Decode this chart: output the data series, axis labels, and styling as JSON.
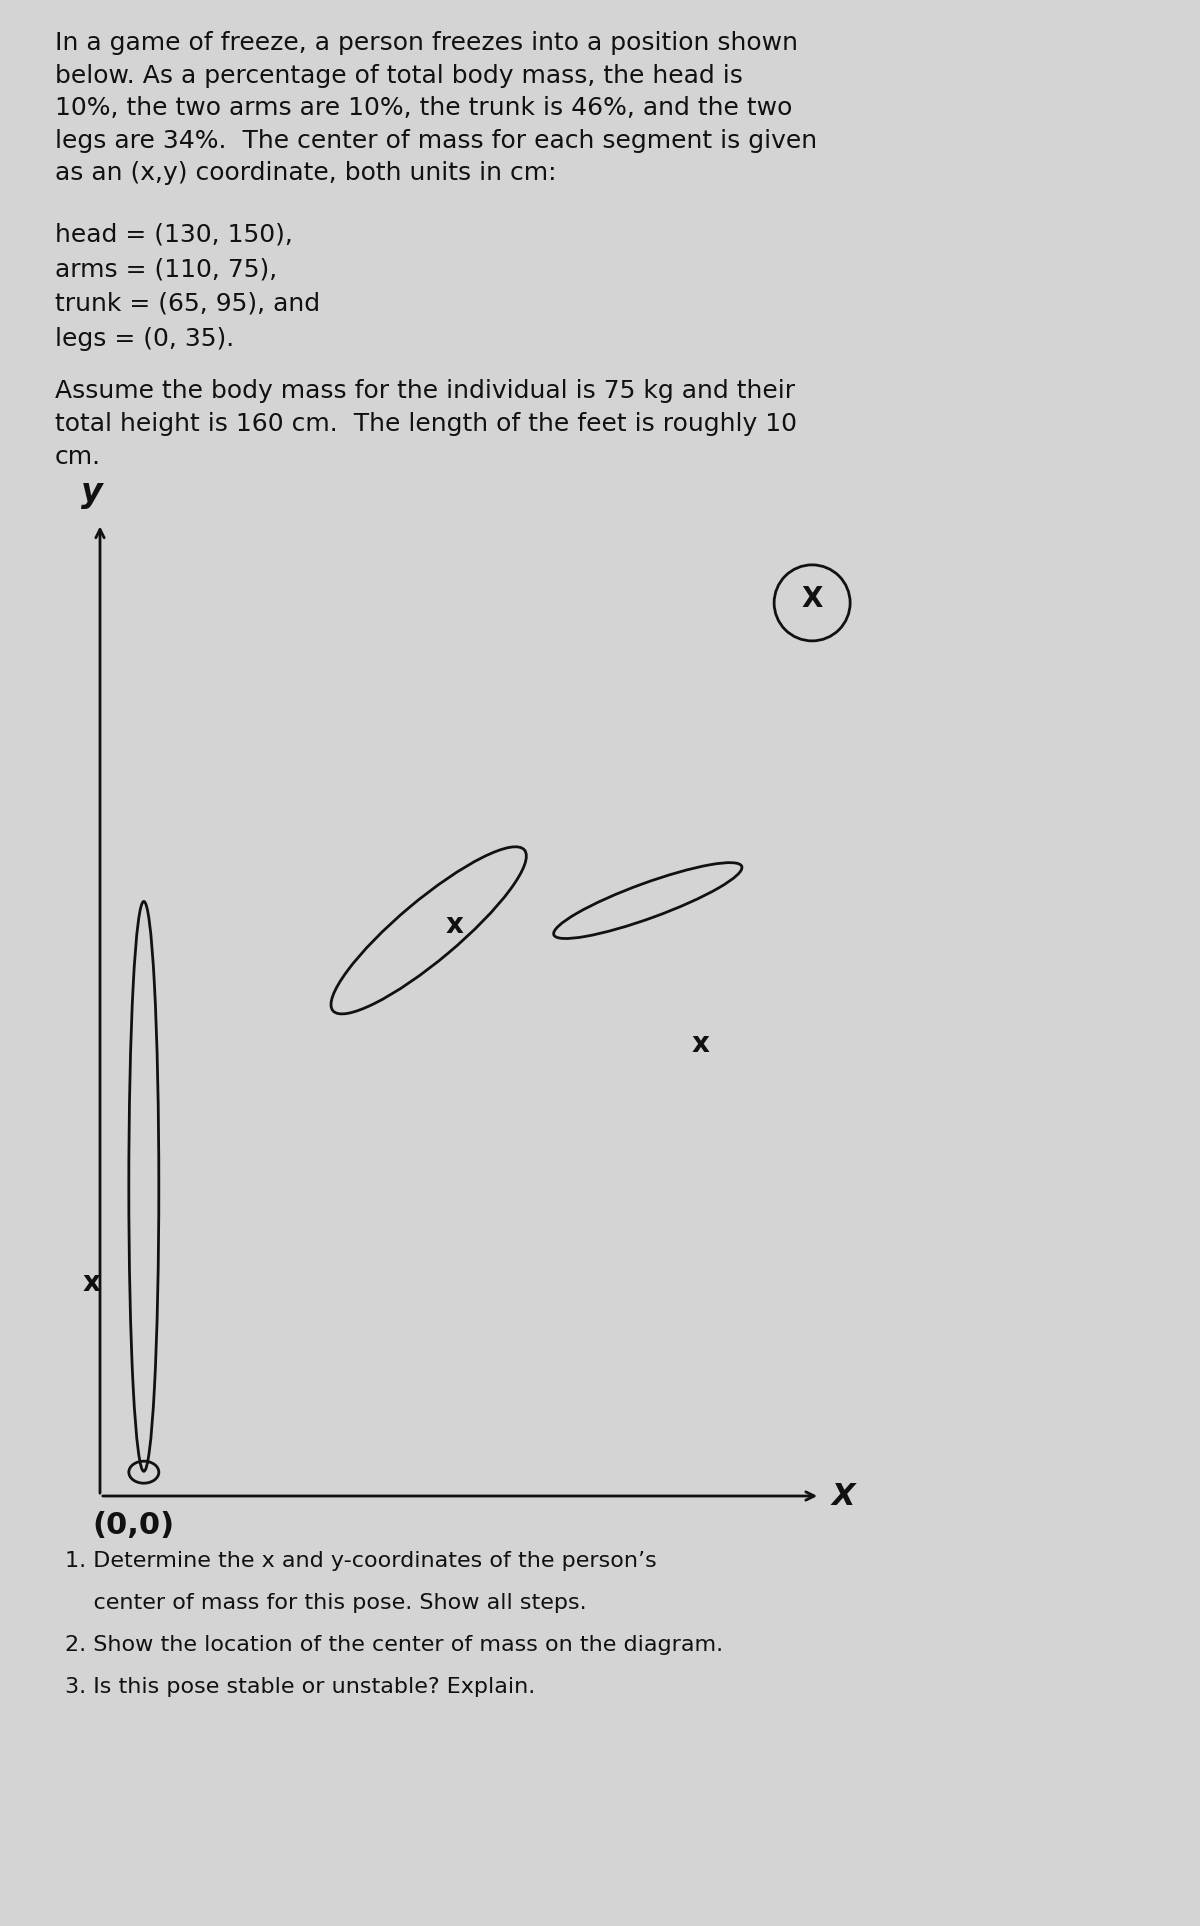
{
  "background_color": "#d4d4d4",
  "text_color": "#111111",
  "line_color": "#111111",
  "para1": "In a game of freeze, a person freezes into a position shown\nbelow. As a percentage of total body mass, the head is\n10%, the two arms are 10%, the trunk is 46%, and the two\nlegs are 34%.  The center of mass for each segment is given\nas an (x,y) coordinate, both units in cm:",
  "coord_lines": [
    "head = (130, 150),",
    "arms = (110, 75),",
    "trunk = (65, 95), and",
    "legs = (0, 35)."
  ],
  "body_text": "Assume the body mass for the individual is 75 kg and their\ntotal height is 160 cm.  The length of the feet is roughly 10\ncm.",
  "questions": [
    "1. Determine the x and y-coordinates of the person’s",
    "    center of mass for this pose. Show all steps.",
    "2. Show the location of the center of mass on the diagram.",
    "3. Is this pose stable or unstable? Explain."
  ],
  "font_size_body": 18,
  "font_size_coord": 18,
  "font_size_question": 16
}
